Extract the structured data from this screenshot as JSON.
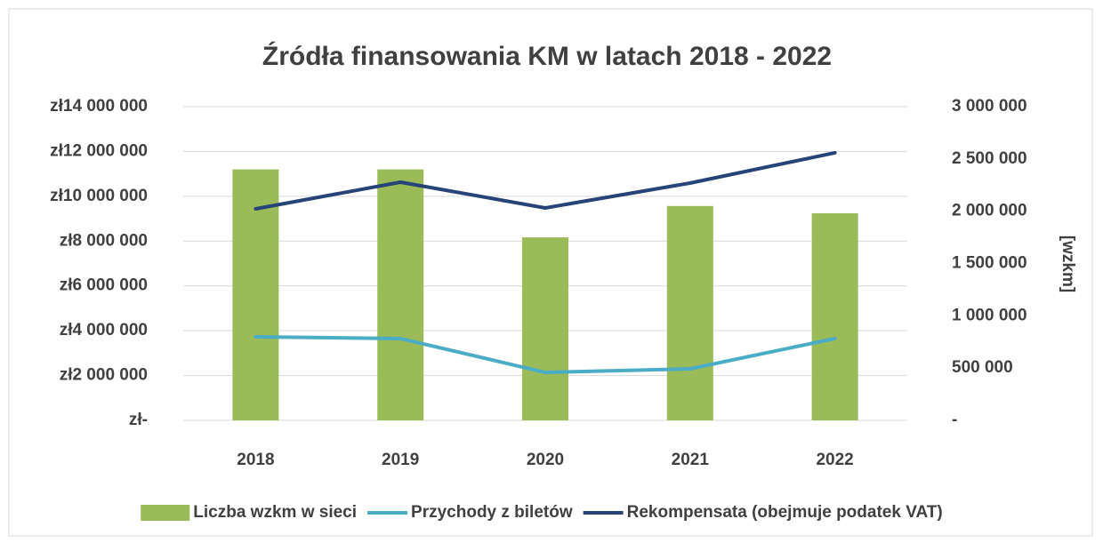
{
  "chart_data": {
    "type": "bar-line",
    "title": "Źródła finansowania KM w latach 2018 - 2022",
    "categories": [
      "2018",
      "2019",
      "2020",
      "2021",
      "2022"
    ],
    "y2label": "[wzkm]",
    "series": [
      {
        "name": "Liczba wzkm w sieci",
        "type": "bar",
        "axis": "y2",
        "color": "#9bbb59",
        "values": [
          2400000,
          2400000,
          1750000,
          2050000,
          1980000
        ]
      },
      {
        "name": "Przychody z biletów",
        "type": "line",
        "axis": "y",
        "color": "#4bacc6",
        "values": [
          3730000,
          3650000,
          2140000,
          2300000,
          3650000
        ]
      },
      {
        "name": "Rekompensata (obejmuje podatek VAT)",
        "type": "line",
        "axis": "y",
        "color": "#264478",
        "values": [
          9440000,
          10630000,
          9480000,
          10590000,
          11940000
        ]
      }
    ],
    "ylim": [
      0,
      14000000
    ],
    "yticks": [
      {
        "value": 0,
        "label": "zł-"
      },
      {
        "value": 2000000,
        "label": "zł2 000 000"
      },
      {
        "value": 4000000,
        "label": "zł4 000 000"
      },
      {
        "value": 6000000,
        "label": "zł6 000 000"
      },
      {
        "value": 8000000,
        "label": "zł8 000 000"
      },
      {
        "value": 10000000,
        "label": "zł10 000 000"
      },
      {
        "value": 12000000,
        "label": "zł12 000 000"
      },
      {
        "value": 14000000,
        "label": "zł14 000 000"
      }
    ],
    "y2lim": [
      0,
      3000000
    ],
    "y2ticks": [
      {
        "value": 0,
        "label": "-"
      },
      {
        "value": 500000,
        "label": "500 000"
      },
      {
        "value": 1000000,
        "label": "1 000 000"
      },
      {
        "value": 1500000,
        "label": "1 500 000"
      },
      {
        "value": 2000000,
        "label": "2 000 000"
      },
      {
        "value": 2500000,
        "label": "2 500 000"
      },
      {
        "value": 3000000,
        "label": "3 000 000"
      }
    ],
    "grid": true,
    "legend": "bottom"
  }
}
